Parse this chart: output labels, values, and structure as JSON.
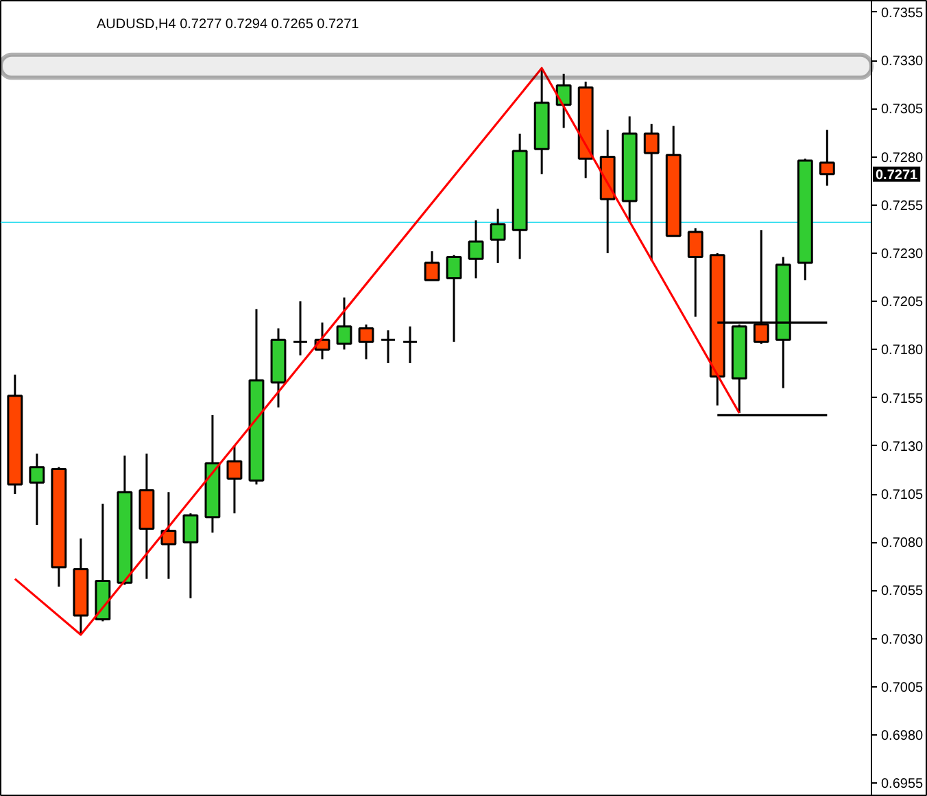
{
  "chart_data": {
    "type": "candlestick",
    "title": "AUDUSD,H4  0.7277 0.7294 0.7265 0.7271",
    "categories": [
      null,
      null,
      null,
      null,
      null,
      null,
      null,
      null,
      null,
      null,
      null,
      null,
      null,
      null,
      null,
      null,
      null,
      null,
      null,
      null,
      null,
      null,
      null,
      null,
      null,
      null,
      null,
      null,
      null,
      null,
      null,
      null,
      null,
      null,
      null,
      null,
      null,
      null
    ],
    "ohlc": [
      [
        0.7156,
        0.7167,
        0.7105,
        0.711
      ],
      [
        0.7111,
        0.7126,
        0.7089,
        0.7119
      ],
      [
        0.7118,
        0.7119,
        0.7057,
        0.7067
      ],
      [
        0.7066,
        0.7082,
        0.7032,
        0.7042
      ],
      [
        0.704,
        0.71,
        0.7039,
        0.706
      ],
      [
        0.7059,
        0.7125,
        0.7058,
        0.7106
      ],
      [
        0.7107,
        0.7126,
        0.7061,
        0.7087
      ],
      [
        0.7086,
        0.7106,
        0.7061,
        0.7079
      ],
      [
        0.708,
        0.7095,
        0.7051,
        0.7094
      ],
      [
        0.7093,
        0.7146,
        0.7085,
        0.7121
      ],
      [
        0.7122,
        0.713,
        0.7095,
        0.7113
      ],
      [
        0.7112,
        0.7201,
        0.711,
        0.7164
      ],
      [
        0.7163,
        0.7191,
        0.715,
        0.7185
      ],
      [
        0.7184,
        0.7205,
        0.7177,
        0.7184
      ],
      [
        0.7185,
        0.7194,
        0.7175,
        0.718
      ],
      [
        0.7183,
        0.7207,
        0.718,
        0.7192
      ],
      [
        0.7191,
        0.7193,
        0.7175,
        0.7184
      ],
      [
        0.7185,
        0.719,
        0.7173,
        0.7185
      ],
      [
        0.7184,
        0.7192,
        0.7173,
        0.7184
      ],
      [
        0.7225,
        0.7231,
        0.7216,
        0.7216
      ],
      [
        0.7217,
        0.7229,
        0.7184,
        0.7228
      ],
      [
        0.7227,
        0.7247,
        0.7217,
        0.7236
      ],
      [
        0.7237,
        0.7253,
        0.7225,
        0.7245
      ],
      [
        0.7242,
        0.7292,
        0.7227,
        0.7283
      ],
      [
        0.7284,
        0.7326,
        0.7271,
        0.7308
      ],
      [
        0.7307,
        0.7323,
        0.7295,
        0.7317
      ],
      [
        0.7316,
        0.7319,
        0.7269,
        0.7279
      ],
      [
        0.728,
        0.7294,
        0.723,
        0.7258
      ],
      [
        0.7257,
        0.7301,
        0.7246,
        0.7292
      ],
      [
        0.7292,
        0.7297,
        0.7226,
        0.7282
      ],
      [
        0.7281,
        0.7296,
        0.7239,
        0.7239
      ],
      [
        0.7241,
        0.7243,
        0.7197,
        0.7228
      ],
      [
        0.7229,
        0.723,
        0.7151,
        0.7166
      ],
      [
        0.7165,
        0.7193,
        0.7147,
        0.7192
      ],
      [
        0.7193,
        0.7242,
        0.7183,
        0.7184
      ],
      [
        0.7185,
        0.7228,
        0.716,
        0.7224
      ],
      [
        0.7225,
        0.7279,
        0.7216,
        0.7278
      ],
      [
        0.7277,
        0.7294,
        0.7265,
        0.7271
      ]
    ],
    "colors": [
      "#ff4500",
      "#32cd32",
      "#ff4500",
      "#ff4500",
      "#32cd32",
      "#32cd32",
      "#ff4500",
      "#ff4500",
      "#32cd32",
      "#32cd32",
      "#ff4500",
      "#32cd32",
      "#32cd32",
      "#000000",
      "#ff4500",
      "#32cd32",
      "#ff4500",
      "#000000",
      "#000000",
      "#ff4500",
      "#32cd32",
      "#32cd32",
      "#32cd32",
      "#32cd32",
      "#32cd32",
      "#32cd32",
      "#ff4500",
      "#ff4500",
      "#32cd32",
      "#ff4500",
      "#ff4500",
      "#ff4500",
      "#ff4500",
      "#32cd32",
      "#ff4500",
      "#32cd32",
      "#32cd32",
      "#ff4500"
    ],
    "series": [
      {
        "type": "line",
        "color": "#ff0000",
        "values": [
          0.7061,
          null,
          null,
          0.7032,
          null,
          null,
          null,
          null,
          null,
          null,
          null,
          null,
          null,
          null,
          null,
          null,
          null,
          null,
          null,
          null,
          null,
          null,
          null,
          null,
          0.7326,
          null,
          null,
          null,
          null,
          null,
          null,
          null,
          null,
          0.7147,
          null,
          null,
          null,
          null
        ]
      },
      {
        "type": "line",
        "color": "#000000",
        "values": [
          null,
          null,
          null,
          null,
          null,
          null,
          null,
          null,
          null,
          null,
          null,
          null,
          null,
          null,
          null,
          null,
          null,
          null,
          null,
          null,
          null,
          null,
          null,
          null,
          null,
          null,
          null,
          null,
          null,
          null,
          null,
          null,
          0.7194,
          0.7194,
          0.7194,
          0.7194,
          0.7194,
          0.7194
        ]
      },
      {
        "type": "line",
        "color": "#000000",
        "values": [
          null,
          null,
          null,
          null,
          null,
          null,
          null,
          null,
          null,
          null,
          null,
          null,
          null,
          null,
          null,
          null,
          null,
          null,
          null,
          null,
          null,
          null,
          null,
          null,
          null,
          null,
          null,
          null,
          null,
          null,
          null,
          null,
          0.7146,
          0.7146,
          0.7146,
          0.7146,
          0.7146,
          0.7146
        ]
      }
    ],
    "ref_lines": [
      {
        "axis": "y",
        "value": 0.7246,
        "color": "#40e0f0"
      }
    ],
    "bands": [
      {
        "axis": "y",
        "from": 0.7321,
        "to": 0.7333,
        "color": "#000000"
      }
    ],
    "annotations": [
      "0.7271"
    ],
    "ylim": [
      0.6948,
      0.7361
    ],
    "yticks": [
      0.6955,
      {
        "value": 0.698,
        "label": "0.6980"
      },
      0.7005,
      {
        "value": 0.703,
        "label": "0.7030"
      },
      0.7055,
      {
        "value": 0.708,
        "label": "0.7080"
      },
      0.7105,
      {
        "value": 0.713,
        "label": "0.7130"
      },
      0.7155,
      {
        "value": 0.718,
        "label": "0.7180"
      },
      0.7205,
      {
        "value": 0.723,
        "label": "0.7230"
      },
      0.7255,
      {
        "value": 0.728,
        "label": "0.7280"
      },
      0.7305,
      {
        "value": 0.733,
        "label": "0.7330"
      },
      0.7355
    ],
    "tick_labels": "y"
  }
}
